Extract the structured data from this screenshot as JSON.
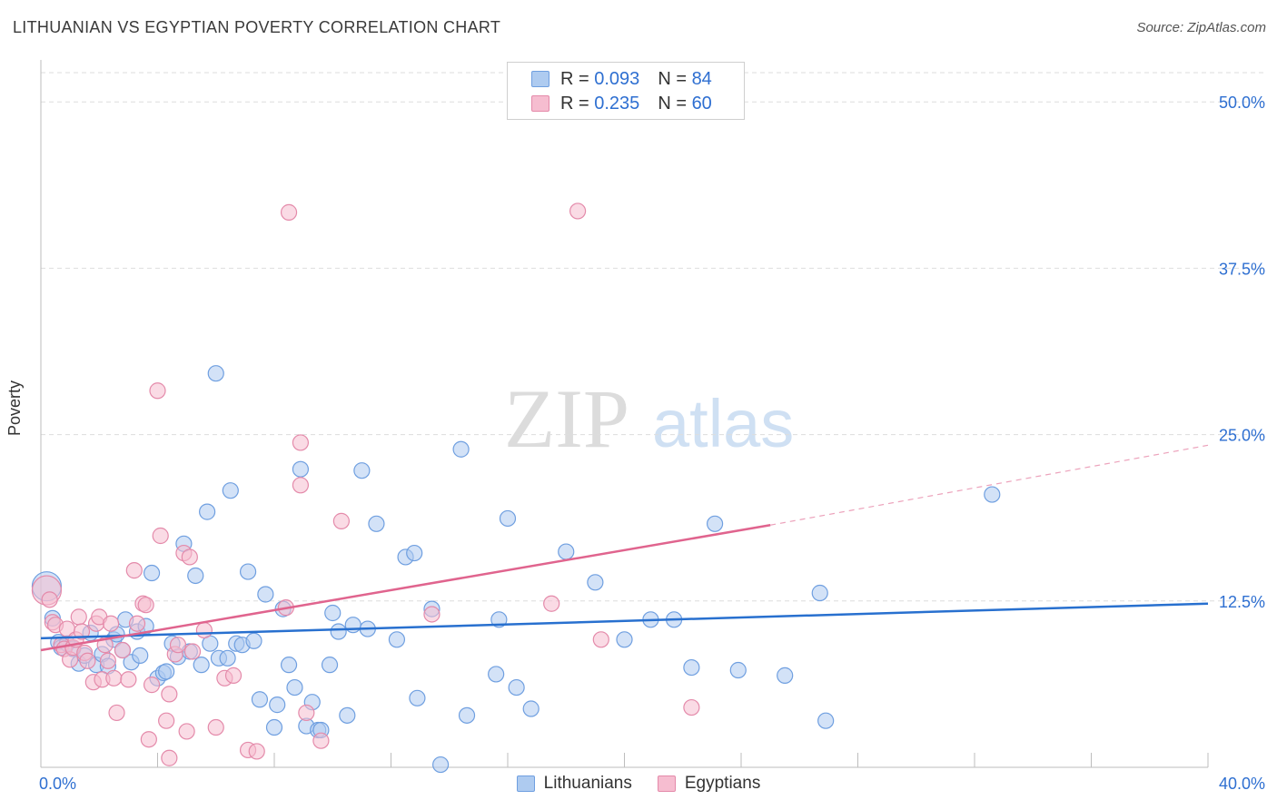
{
  "title": "LITHUANIAN VS EGYPTIAN POVERTY CORRELATION CHART",
  "source": "Source: ZipAtlas.com",
  "watermark": {
    "zip": "ZIP",
    "atlas": "atlas"
  },
  "legend": {
    "rows": [
      {
        "r_label": "R =",
        "r_value": "0.093",
        "n_label": "N =",
        "n_value": "84"
      },
      {
        "r_label": "R =",
        "r_value": "0.235",
        "n_label": "N =",
        "n_value": "60"
      }
    ]
  },
  "colors": {
    "blue_fill": "#aecbf0",
    "blue_stroke": "#6f9fe0",
    "blue_line": "#2870cf",
    "pink_fill": "#f6bdd0",
    "pink_stroke": "#e48aaa",
    "pink_line": "#e0648e",
    "tick_label": "#2e6fd1",
    "grid": "#dddddd"
  },
  "chart_data": {
    "type": "scatter",
    "title": "LITHUANIAN VS EGYPTIAN POVERTY CORRELATION CHART",
    "xlabel": "",
    "ylabel": "Poverty",
    "xlim": [
      0,
      40
    ],
    "ylim": [
      0,
      50
    ],
    "x_tick_labels": [
      "0.0%",
      "40.0%"
    ],
    "y_ticks": [
      12.5,
      25.0,
      37.5,
      50.0
    ],
    "y_tick_labels": [
      "12.5%",
      "25.0%",
      "37.5%",
      "50.0%"
    ],
    "grid": "horizontal dashed",
    "legend_position": "top-center",
    "series": [
      {
        "name": "Lithuanians",
        "r": 0.093,
        "n": 84,
        "trend": {
          "x0": 0,
          "y0": 9.7,
          "x1": 40,
          "y1": 12.3
        },
        "points": [
          [
            0.2,
            13.6
          ],
          [
            0.4,
            11.2
          ],
          [
            0.6,
            9.4
          ],
          [
            0.7,
            9.0
          ],
          [
            0.9,
            9.3
          ],
          [
            1.1,
            8.9
          ],
          [
            1.3,
            7.8
          ],
          [
            1.5,
            8.4
          ],
          [
            1.7,
            10.1
          ],
          [
            1.9,
            7.7
          ],
          [
            2.1,
            8.5
          ],
          [
            2.3,
            7.6
          ],
          [
            2.5,
            9.6
          ],
          [
            2.6,
            10.0
          ],
          [
            2.8,
            8.8
          ],
          [
            2.9,
            11.1
          ],
          [
            3.1,
            7.9
          ],
          [
            3.3,
            10.2
          ],
          [
            3.4,
            8.4
          ],
          [
            3.6,
            10.6
          ],
          [
            3.8,
            14.6
          ],
          [
            4.0,
            6.7
          ],
          [
            4.2,
            7.1
          ],
          [
            4.3,
            7.2
          ],
          [
            4.5,
            9.3
          ],
          [
            4.7,
            8.3
          ],
          [
            4.9,
            16.8
          ],
          [
            5.1,
            8.7
          ],
          [
            5.3,
            14.4
          ],
          [
            5.5,
            7.7
          ],
          [
            5.7,
            19.2
          ],
          [
            5.8,
            9.3
          ],
          [
            6.0,
            29.6
          ],
          [
            6.1,
            8.2
          ],
          [
            6.4,
            8.2
          ],
          [
            6.5,
            20.8
          ],
          [
            6.7,
            9.3
          ],
          [
            6.9,
            9.2
          ],
          [
            7.1,
            14.7
          ],
          [
            7.3,
            9.5
          ],
          [
            7.5,
            5.1
          ],
          [
            7.7,
            13.0
          ],
          [
            8.0,
            3.0
          ],
          [
            8.1,
            4.7
          ],
          [
            8.3,
            11.9
          ],
          [
            8.5,
            7.7
          ],
          [
            8.7,
            6.0
          ],
          [
            8.9,
            22.4
          ],
          [
            9.1,
            3.1
          ],
          [
            9.3,
            4.9
          ],
          [
            9.5,
            2.8
          ],
          [
            9.6,
            2.8
          ],
          [
            9.9,
            7.7
          ],
          [
            10.0,
            11.6
          ],
          [
            10.2,
            10.2
          ],
          [
            10.5,
            3.9
          ],
          [
            10.7,
            10.7
          ],
          [
            11.0,
            22.3
          ],
          [
            11.2,
            10.4
          ],
          [
            11.5,
            18.3
          ],
          [
            12.2,
            9.6
          ],
          [
            12.5,
            15.8
          ],
          [
            12.8,
            16.1
          ],
          [
            12.9,
            5.2
          ],
          [
            13.4,
            11.9
          ],
          [
            13.7,
            0.2
          ],
          [
            14.4,
            23.9
          ],
          [
            14.6,
            3.9
          ],
          [
            15.6,
            7.0
          ],
          [
            15.7,
            11.1
          ],
          [
            16.0,
            18.7
          ],
          [
            16.3,
            6.0
          ],
          [
            16.8,
            4.4
          ],
          [
            18.0,
            16.2
          ],
          [
            19.0,
            13.9
          ],
          [
            20.0,
            9.6
          ],
          [
            20.9,
            11.1
          ],
          [
            21.7,
            11.1
          ],
          [
            22.3,
            7.5
          ],
          [
            23.1,
            18.3
          ],
          [
            23.9,
            7.3
          ],
          [
            25.5,
            6.9
          ],
          [
            26.7,
            13.1
          ],
          [
            26.9,
            3.5
          ],
          [
            32.6,
            20.5
          ]
        ]
      },
      {
        "name": "Egyptians",
        "r": 0.235,
        "n": 60,
        "trend": {
          "x0": 0,
          "y0": 8.8,
          "x1": 25,
          "y1": 18.2,
          "dash_to_x": 40,
          "dash_to_y": 24.2
        },
        "points": [
          [
            0.2,
            13.3
          ],
          [
            0.3,
            12.6
          ],
          [
            0.4,
            10.9
          ],
          [
            0.5,
            10.7
          ],
          [
            0.7,
            9.2
          ],
          [
            0.8,
            8.9
          ],
          [
            0.9,
            10.4
          ],
          [
            1.0,
            8.1
          ],
          [
            1.1,
            9.0
          ],
          [
            1.2,
            9.6
          ],
          [
            1.3,
            11.3
          ],
          [
            1.4,
            10.2
          ],
          [
            1.5,
            8.6
          ],
          [
            1.6,
            8.0
          ],
          [
            1.8,
            6.4
          ],
          [
            1.9,
            10.8
          ],
          [
            2.0,
            11.3
          ],
          [
            2.1,
            6.6
          ],
          [
            2.2,
            9.2
          ],
          [
            2.3,
            8.0
          ],
          [
            2.4,
            10.8
          ],
          [
            2.5,
            6.7
          ],
          [
            2.6,
            4.1
          ],
          [
            2.8,
            8.8
          ],
          [
            3.0,
            6.6
          ],
          [
            3.2,
            14.8
          ],
          [
            3.3,
            10.8
          ],
          [
            3.5,
            12.3
          ],
          [
            3.6,
            12.2
          ],
          [
            3.7,
            2.1
          ],
          [
            3.8,
            6.2
          ],
          [
            4.0,
            28.3
          ],
          [
            4.1,
            17.4
          ],
          [
            4.3,
            3.5
          ],
          [
            4.4,
            5.5
          ],
          [
            4.6,
            8.5
          ],
          [
            4.7,
            9.2
          ],
          [
            4.9,
            16.1
          ],
          [
            5.0,
            2.7
          ],
          [
            5.1,
            15.8
          ],
          [
            5.2,
            8.7
          ],
          [
            5.6,
            10.3
          ],
          [
            6.0,
            3.0
          ],
          [
            6.3,
            6.7
          ],
          [
            6.6,
            6.9
          ],
          [
            7.1,
            1.3
          ],
          [
            7.4,
            1.2
          ],
          [
            8.4,
            12.0
          ],
          [
            8.5,
            41.7
          ],
          [
            8.9,
            21.2
          ],
          [
            8.9,
            24.4
          ],
          [
            9.1,
            4.1
          ],
          [
            9.6,
            2.0
          ],
          [
            10.3,
            18.5
          ],
          [
            13.4,
            11.5
          ],
          [
            17.5,
            12.3
          ],
          [
            18.4,
            41.8
          ],
          [
            19.2,
            9.6
          ],
          [
            22.3,
            4.5
          ],
          [
            4.4,
            0.7
          ]
        ]
      }
    ]
  },
  "bottom_legend": [
    "Lithuanians",
    "Egyptians"
  ]
}
